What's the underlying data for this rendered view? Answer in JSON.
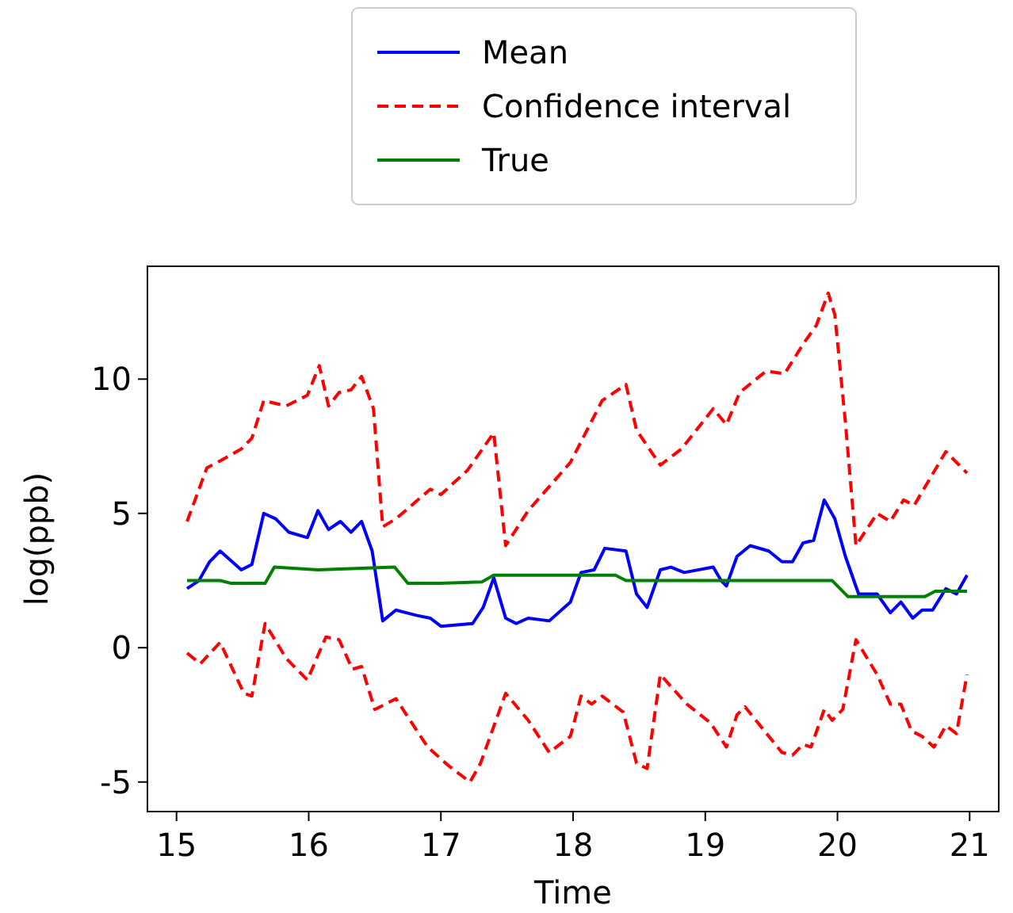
{
  "chart_data": {
    "type": "line",
    "xlabel": "Time",
    "ylabel": "log(ppb)",
    "xlim": [
      14.78,
      21.22
    ],
    "ylim": [
      -6.1,
      14.2
    ],
    "xticks": [
      15,
      16,
      17,
      18,
      19,
      20,
      21
    ],
    "yticks": [
      -5,
      0,
      5,
      10
    ],
    "legend": "top",
    "grid": false,
    "series": [
      {
        "name": "Mean",
        "color": "#0000ff",
        "line_style": "solid",
        "x": [
          15.08,
          15.17,
          15.25,
          15.33,
          15.49,
          15.57,
          15.66,
          15.75,
          15.85,
          15.99,
          16.07,
          16.15,
          16.24,
          16.32,
          16.4,
          16.48,
          16.56,
          16.66,
          16.82,
          16.92,
          17.0,
          17.24,
          17.32,
          17.4,
          17.49,
          17.57,
          17.66,
          17.82,
          17.98,
          18.06,
          18.16,
          18.24,
          18.4,
          18.48,
          18.56,
          18.66,
          18.74,
          18.84,
          19.06,
          19.12,
          19.16,
          19.24,
          19.34,
          19.48,
          19.58,
          19.66,
          19.74,
          19.82,
          19.9,
          19.98,
          20.06,
          20.16,
          20.3,
          20.4,
          20.48,
          20.57,
          20.64,
          20.72,
          20.82,
          20.9,
          20.98
        ],
        "values": [
          2.2,
          2.5,
          3.2,
          3.6,
          2.9,
          3.1,
          5.0,
          4.8,
          4.3,
          4.1,
          5.1,
          4.4,
          4.7,
          4.3,
          4.7,
          3.6,
          1.0,
          1.4,
          1.2,
          1.1,
          0.8,
          0.9,
          1.5,
          2.6,
          1.1,
          0.9,
          1.1,
          1.0,
          1.7,
          2.8,
          2.9,
          3.7,
          3.6,
          2.0,
          1.5,
          2.9,
          3.0,
          2.8,
          3.0,
          2.5,
          2.3,
          3.4,
          3.8,
          3.6,
          3.2,
          3.2,
          3.9,
          4.0,
          5.5,
          4.8,
          3.4,
          2.0,
          2.0,
          1.3,
          1.7,
          1.1,
          1.4,
          1.4,
          2.2,
          2.0,
          2.7
        ]
      },
      {
        "name": "Confidence interval",
        "color": "#ff0000",
        "line_style": "dashed",
        "x": [
          15.08,
          15.23,
          15.31,
          15.49,
          15.57,
          15.66,
          15.83,
          15.99,
          16.08,
          16.15,
          16.23,
          16.32,
          16.4,
          16.49,
          16.56,
          16.66,
          16.92,
          17.0,
          17.2,
          17.4,
          17.49,
          17.66,
          17.98,
          18.22,
          18.4,
          18.48,
          18.66,
          18.82,
          19.06,
          19.16,
          19.26,
          19.46,
          19.6,
          19.74,
          19.84,
          19.93,
          19.98,
          20.06,
          20.14,
          20.3,
          20.4,
          20.5,
          20.58,
          20.82,
          20.98
        ],
        "values": [
          4.7,
          6.7,
          6.9,
          7.4,
          7.8,
          9.2,
          9.0,
          9.4,
          10.5,
          9.0,
          9.5,
          9.6,
          10.1,
          8.9,
          4.5,
          4.8,
          5.9,
          5.7,
          6.6,
          8.0,
          3.8,
          5.1,
          6.9,
          9.2,
          9.8,
          8.1,
          6.8,
          7.4,
          8.9,
          8.3,
          9.5,
          10.3,
          10.2,
          11.3,
          12.0,
          13.2,
          12.4,
          8.4,
          3.8,
          5.0,
          4.7,
          5.5,
          5.3,
          7.3,
          6.5
        ]
      },
      {
        "color": "#ff0000",
        "line_style": "dashed",
        "x": [
          15.08,
          15.18,
          15.33,
          15.51,
          15.57,
          15.67,
          15.83,
          15.99,
          16.13,
          16.23,
          16.33,
          16.4,
          16.5,
          16.66,
          16.9,
          17.06,
          17.22,
          17.3,
          17.49,
          17.66,
          17.82,
          17.98,
          18.06,
          18.14,
          18.22,
          18.38,
          18.48,
          18.56,
          18.66,
          18.86,
          19.04,
          19.16,
          19.24,
          19.3,
          19.58,
          19.66,
          19.74,
          19.8,
          19.9,
          19.96,
          20.04,
          20.14,
          20.3,
          20.4,
          20.48,
          20.56,
          20.64,
          20.73,
          20.82,
          20.9,
          20.98
        ],
        "values": [
          -0.2,
          -0.6,
          0.2,
          -1.7,
          -1.8,
          0.9,
          -0.4,
          -1.2,
          0.4,
          0.3,
          -0.8,
          -0.7,
          -2.3,
          -1.9,
          -3.7,
          -4.4,
          -5.0,
          -4.3,
          -1.7,
          -2.7,
          -3.9,
          -3.3,
          -1.8,
          -2.1,
          -1.8,
          -2.4,
          -4.3,
          -4.5,
          -1.0,
          -2.1,
          -2.8,
          -3.7,
          -2.5,
          -2.2,
          -3.9,
          -4.0,
          -3.6,
          -3.7,
          -2.3,
          -2.7,
          -2.3,
          0.3,
          -1.0,
          -2.1,
          -2.1,
          -3.1,
          -3.3,
          -3.7,
          -2.9,
          -3.2,
          -1.0
        ]
      },
      {
        "name": "True",
        "color": "#008000",
        "line_style": "solid",
        "x": [
          15.08,
          15.33,
          15.41,
          15.67,
          15.74,
          16.07,
          16.65,
          16.75,
          16.99,
          17.31,
          17.4,
          18.32,
          18.4,
          19.96,
          20.08,
          20.66,
          20.74,
          20.98
        ],
        "values": [
          2.5,
          2.5,
          2.4,
          2.4,
          3.0,
          2.9,
          3.0,
          2.4,
          2.4,
          2.45,
          2.7,
          2.7,
          2.5,
          2.5,
          1.9,
          1.9,
          2.1,
          2.1
        ]
      }
    ]
  }
}
